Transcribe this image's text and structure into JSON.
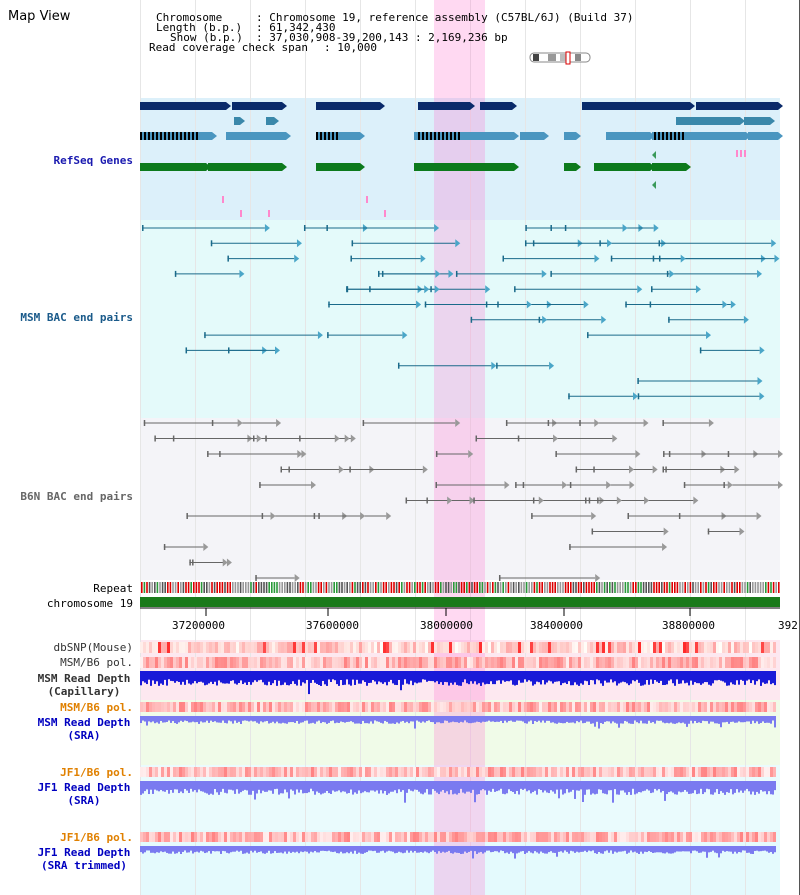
{
  "header": {
    "title": "Map View",
    "chromosome_key": "Chromosome",
    "chromosome_value": ": Chromosome 19, reference assembly (C57BL/6J) (Build 37)",
    "length_key": "Length (b.p.)",
    "length_value": ": 61,342,430",
    "show_key": "Show (b.p.)",
    "show_value": ": 37,030,908-39,200,143 : 2,169,236 bp",
    "coverage_key": "Read coverage check span",
    "coverage_value": ": 10,000"
  },
  "tracks": {
    "refseq": "RefSeq Genes",
    "msm_bac": "MSM BAC end pairs",
    "b6n_bac": "B6N BAC end pairs",
    "repeat": "Repeat",
    "chromosome": "chromosome 19",
    "dbsnp": "dbSNP(Mouse)",
    "msm_pol": "MSM/B6 pol.",
    "msm_depth_cap_1": "MSM Read Depth",
    "msm_depth_cap_2": "(Capillary)",
    "msm_pol_sra": "MSM/B6 pol.",
    "msm_depth_sra_1": "MSM Read Depth",
    "msm_depth_sra_2": "(SRA)",
    "jf1_pol": "JF1/B6 pol.",
    "jf1_depth_1": "JF1 Read Depth",
    "jf1_depth_2": "(SRA)",
    "jf1_pol_trim": "JF1/B6 pol.",
    "jf1_trim_1": "JF1 Read Depth",
    "jf1_trim_2": "(SRA trimmed)"
  },
  "axis": {
    "ticks": [
      "37200000",
      "37600000",
      "38000000",
      "38400000",
      "38800000",
      "392"
    ]
  },
  "colors": {
    "refseq_label": "#1a1ab0",
    "msm_label": "#1a5a8a",
    "b6n_label": "#666666",
    "pol_label": "#e08000",
    "depth_label": "#0000c0",
    "highlight": "#ff78d2"
  }
}
